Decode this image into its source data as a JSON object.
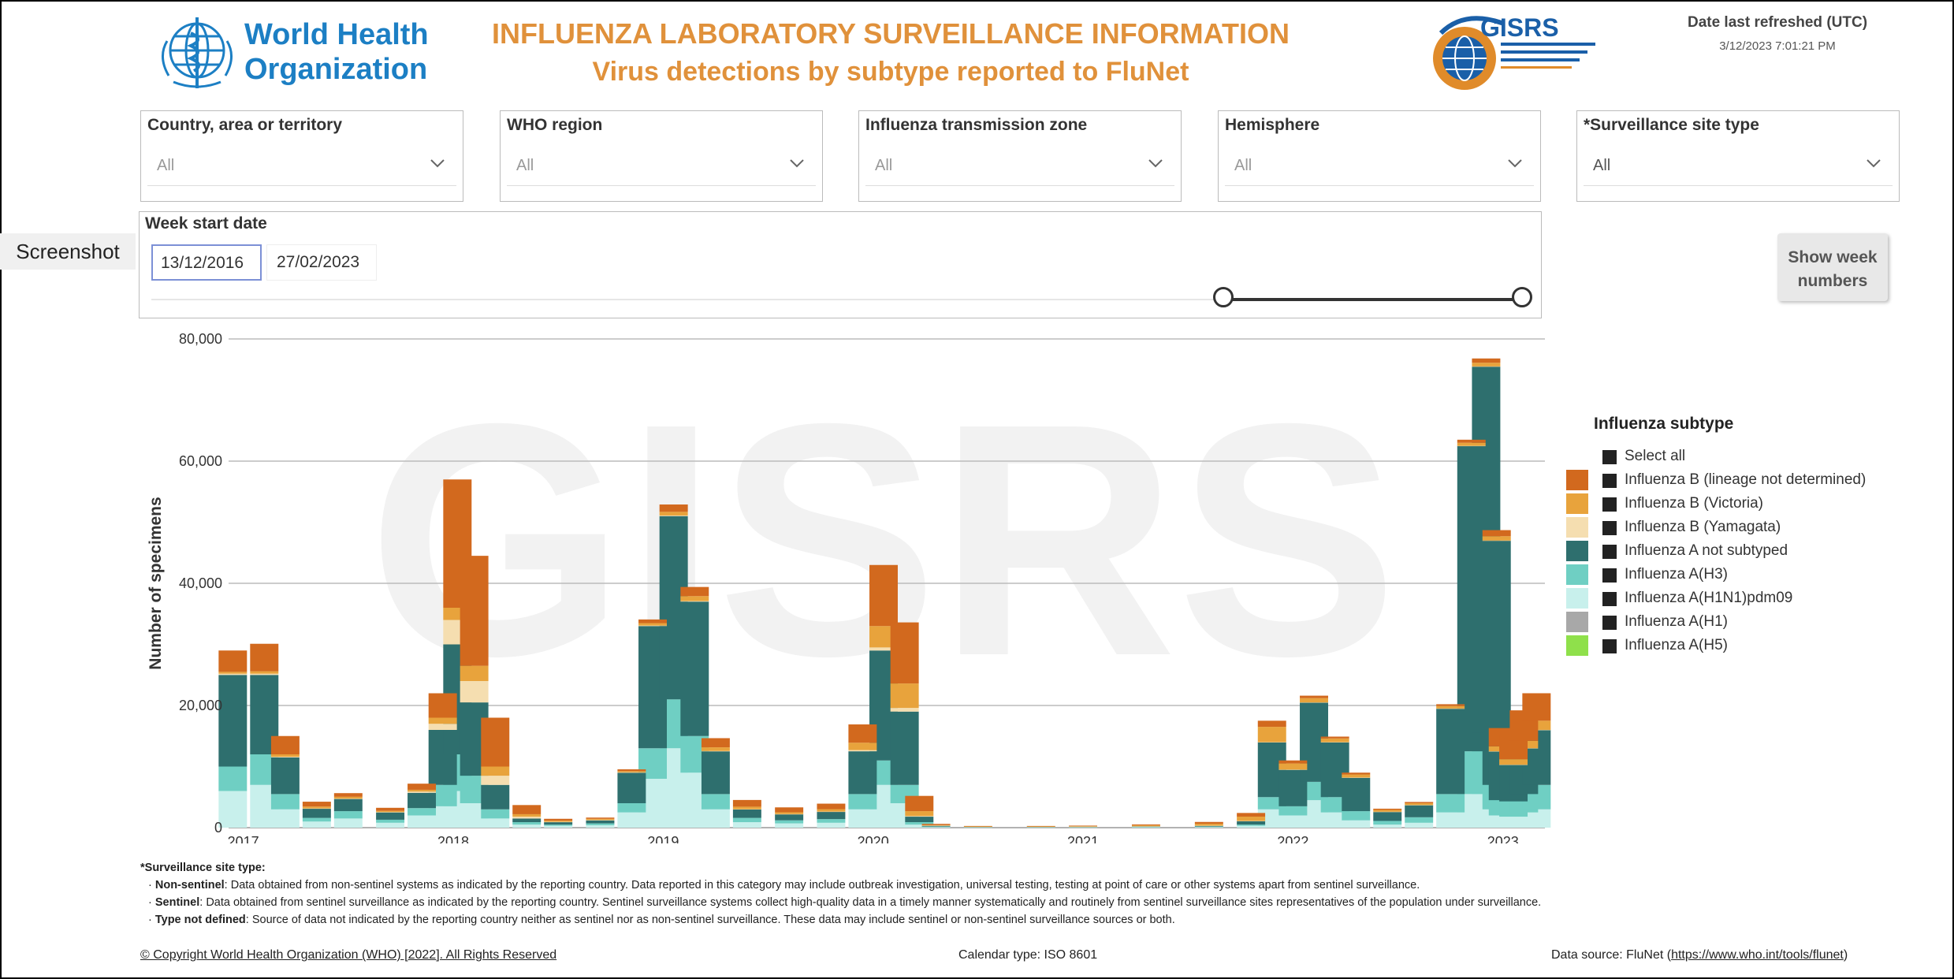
{
  "header": {
    "org_line1": "World Health",
    "org_line2": "Organization",
    "title": "INFLUENZA LABORATORY SURVEILLANCE INFORMATION",
    "subtitle": "Virus detections by subtype reported to FluNet",
    "gisrs_text": "GISRS",
    "refresh_label": "Date last refreshed (UTC)",
    "refresh_value": "3/12/2023 7:01:21 PM"
  },
  "filters": [
    {
      "label": "Country, area or territory",
      "value": "All"
    },
    {
      "label": "WHO region",
      "value": "All"
    },
    {
      "label": "Influenza transmission zone",
      "value": "All"
    },
    {
      "label": "Hemisphere",
      "value": "All"
    },
    {
      "label": "*Surveillance site type",
      "value": "All"
    }
  ],
  "week": {
    "label": "Week start date",
    "start": "13/12/2016",
    "end": "27/02/2023",
    "slider_range": [
      0.78,
      1.0
    ]
  },
  "screenshot_tag": "Screenshot",
  "show_week_button": "Show week\nnumbers",
  "legend": {
    "title": "Influenza subtype",
    "items": [
      {
        "label": "Select all",
        "color": ""
      },
      {
        "label": "Influenza B (lineage not determined)",
        "color": "#d2691e"
      },
      {
        "label": "Influenza B (Victoria)",
        "color": "#e8a33c"
      },
      {
        "label": "Influenza B (Yamagata)",
        "color": "#f5deb0"
      },
      {
        "label": "Influenza A not subtyped",
        "color": "#2e6f6e"
      },
      {
        "label": "Influenza A(H3)",
        "color": "#6fcfc3"
      },
      {
        "label": "Influenza A(H1N1)pdm09",
        "color": "#c8f0ec"
      },
      {
        "label": "Influenza A(H1)",
        "color": "#a8a8a8"
      },
      {
        "label": "Influenza A(H5)",
        "color": "#8fe04b"
      }
    ]
  },
  "chart_data": {
    "type": "bar",
    "stacked": true,
    "watermark": "GISRS",
    "ylabel": "Number of specimens",
    "ylim": [
      0,
      80000
    ],
    "yticks": [
      "0",
      "20,000",
      "40,000",
      "60,000",
      "80,000"
    ],
    "xticks": [
      "2017",
      "2018",
      "2019",
      "2020",
      "2021",
      "2022",
      "2023"
    ],
    "x": [
      2016.95,
      2017.1,
      2017.2,
      2017.35,
      2017.5,
      2017.7,
      2017.85,
      2017.95,
      2018.02,
      2018.1,
      2018.2,
      2018.35,
      2018.5,
      2018.7,
      2018.85,
      2018.95,
      2019.05,
      2019.15,
      2019.25,
      2019.4,
      2019.6,
      2019.8,
      2019.95,
      2020.05,
      2020.15,
      2020.22,
      2020.3,
      2020.5,
      2020.8,
      2021.0,
      2021.3,
      2021.6,
      2021.8,
      2021.9,
      2022.0,
      2022.1,
      2022.2,
      2022.3,
      2022.45,
      2022.6,
      2022.75,
      2022.85,
      2022.92,
      2022.97,
      2023.0,
      2023.05,
      2023.1,
      2023.16
    ],
    "series": [
      {
        "name": "Influenza A(H1N1)pdm09",
        "values": [
          6000,
          7000,
          3000,
          1000,
          1500,
          800,
          2000,
          3500,
          6000,
          4000,
          1500,
          500,
          300,
          400,
          2500,
          8000,
          13000,
          9000,
          3000,
          900,
          700,
          800,
          3000,
          7000,
          4000,
          500,
          100,
          50,
          50,
          50,
          80,
          100,
          300,
          3000,
          2000,
          4500,
          2500,
          1200,
          500,
          800,
          2500,
          5500,
          6500,
          3000,
          2000,
          1800,
          2500,
          3000
        ]
      },
      {
        "name": "Influenza A(H3)",
        "values": [
          4000,
          5000,
          2500,
          600,
          1200,
          500,
          1200,
          3500,
          6000,
          4500,
          1500,
          400,
          200,
          300,
          1500,
          5000,
          8000,
          6000,
          2500,
          700,
          500,
          600,
          2500,
          4000,
          3000,
          400,
          80,
          40,
          40,
          40,
          60,
          80,
          200,
          2000,
          1500,
          3000,
          2500,
          1500,
          600,
          900,
          3000,
          7000,
          9000,
          4000,
          2500,
          2500,
          3000,
          4000
        ]
      },
      {
        "name": "Influenza A not subtyped",
        "values": [
          15000,
          13000,
          6000,
          1500,
          2000,
          1200,
          2500,
          9000,
          18000,
          12000,
          4000,
          600,
          400,
          500,
          5000,
          20000,
          30000,
          22000,
          7000,
          1400,
          1000,
          1200,
          7000,
          18000,
          12000,
          900,
          150,
          60,
          60,
          60,
          80,
          150,
          600,
          9000,
          6000,
          13000,
          9000,
          5500,
          1500,
          2000,
          14000,
          50000,
          60000,
          40000,
          8000,
          6000,
          7500,
          9000
        ]
      },
      {
        "name": "Influenza B (Yamagata)",
        "values": [
          200,
          200,
          100,
          50,
          50,
          50,
          200,
          1000,
          4000,
          3500,
          1500,
          300,
          50,
          50,
          50,
          80,
          100,
          100,
          50,
          30,
          20,
          30,
          200,
          500,
          600,
          100,
          10,
          5,
          5,
          5,
          5,
          5,
          5,
          5,
          5,
          5,
          5,
          5,
          5,
          5,
          5,
          5,
          5,
          5,
          5,
          5,
          5,
          5
        ]
      },
      {
        "name": "Influenza B (Victoria)",
        "values": [
          300,
          400,
          400,
          300,
          300,
          200,
          300,
          1000,
          2000,
          2500,
          1500,
          400,
          200,
          200,
          200,
          400,
          600,
          800,
          600,
          400,
          300,
          400,
          1200,
          3500,
          4000,
          800,
          80,
          40,
          40,
          80,
          150,
          300,
          700,
          2500,
          1000,
          700,
          600,
          500,
          300,
          300,
          400,
          500,
          600,
          700,
          800,
          900,
          1200,
          1500
        ]
      },
      {
        "name": "Influenza B (lineage not determined)",
        "values": [
          3500,
          4500,
          3000,
          800,
          600,
          500,
          1000,
          4000,
          21000,
          18000,
          8000,
          1500,
          300,
          200,
          300,
          600,
          1200,
          1500,
          1500,
          1100,
          800,
          900,
          3000,
          10000,
          10000,
          2500,
          200,
          80,
          80,
          100,
          150,
          300,
          600,
          1000,
          500,
          400,
          300,
          300,
          200,
          200,
          300,
          500,
          700,
          1000,
          3000,
          4000,
          5000,
          4500
        ]
      },
      {
        "name": "Influenza A(H1)",
        "values": [
          0,
          0,
          0,
          0,
          0,
          0,
          0,
          0,
          0,
          0,
          0,
          0,
          0,
          0,
          0,
          0,
          0,
          0,
          0,
          0,
          0,
          0,
          0,
          0,
          0,
          0,
          0,
          0,
          0,
          0,
          0,
          0,
          0,
          0,
          0,
          0,
          0,
          0,
          0,
          0,
          0,
          0,
          0,
          0,
          0,
          0,
          0,
          0
        ]
      },
      {
        "name": "Influenza A(H5)",
        "values": [
          0,
          0,
          0,
          0,
          0,
          0,
          0,
          0,
          0,
          0,
          0,
          0,
          0,
          0,
          0,
          0,
          0,
          0,
          0,
          0,
          0,
          0,
          0,
          0,
          0,
          0,
          0,
          0,
          0,
          0,
          0,
          0,
          0,
          0,
          0,
          0,
          0,
          0,
          0,
          0,
          0,
          0,
          0,
          0,
          0,
          0,
          0,
          0
        ]
      }
    ],
    "grid": true,
    "legend_position": "right"
  },
  "notes": {
    "heading": "*Surveillance site type:",
    "items": [
      {
        "term": "Non-sentinel",
        "text": ": Data obtained from non-sentinel systems as indicated by the reporting country. Data reported in this category may include outbreak investigation, universal testing, testing at point of care or other systems apart from sentinel surveillance."
      },
      {
        "term": "Sentinel",
        "text": ": Data obtained from sentinel surveillance as indicated by the reporting country. Sentinel surveillance systems collect high-quality data in a timely manner systematically and routinely from sentinel surveillance sites representatives of the population under surveillance."
      },
      {
        "term": "Type not defined",
        "text": ": Source of data not indicated by the reporting country neither as sentinel nor as non-sentinel surveillance. These data may include sentinel or non-sentinel surveillance sources or both."
      }
    ]
  },
  "footer": {
    "copyright": "© Copyright World Health Organization (WHO) [2022]. All Rights Reserved",
    "calendar": "Calendar type: ISO 8601",
    "datasource_prefix": "Data source: FluNet (",
    "datasource_link": "https://www.who.int/tools/flunet",
    "datasource_suffix": ")"
  }
}
